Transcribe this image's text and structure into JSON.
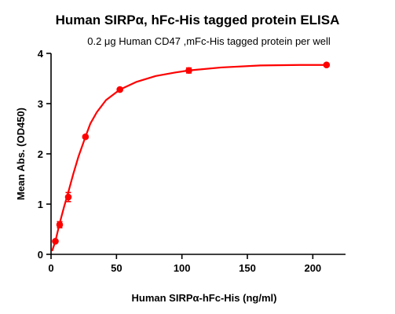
{
  "chart_data": {
    "type": "line",
    "title": "Human SIRPα, hFc-His tagged  protein ELISA",
    "subtitle": "0.2 μg Human CD47 ,mFc-His tagged protein per well",
    "xlabel": "Human SIRPα-hFc-His (ng/ml)",
    "ylabel": "Mean Abs. (OD450)",
    "xlim": [
      0,
      225
    ],
    "ylim": [
      0,
      4
    ],
    "xticks": [
      0,
      50,
      100,
      150,
      200
    ],
    "yticks": [
      0,
      1,
      2,
      3,
      4
    ],
    "grid": false,
    "legend": "none",
    "series": [
      {
        "color": "#ff0000",
        "points": [
          {
            "x": 3.3,
            "y": 0.26,
            "err": 0.02
          },
          {
            "x": 6.6,
            "y": 0.59,
            "err": 0.06
          },
          {
            "x": 13.2,
            "y": 1.14,
            "err": 0.09
          },
          {
            "x": 26.3,
            "y": 2.34,
            "err": 0.03
          },
          {
            "x": 52.6,
            "y": 3.28,
            "err": 0.02
          },
          {
            "x": 105.3,
            "y": 3.66,
            "err": 0.05
          },
          {
            "x": 210.5,
            "y": 3.77,
            "err": 0.01
          }
        ],
        "curve": [
          [
            1,
            0.08
          ],
          [
            3.3,
            0.26
          ],
          [
            6.6,
            0.62
          ],
          [
            10,
            0.95
          ],
          [
            13.2,
            1.24
          ],
          [
            17,
            1.6
          ],
          [
            21,
            1.95
          ],
          [
            26.3,
            2.34
          ],
          [
            30,
            2.6
          ],
          [
            35,
            2.83
          ],
          [
            42,
            3.07
          ],
          [
            52.6,
            3.28
          ],
          [
            65,
            3.43
          ],
          [
            80,
            3.55
          ],
          [
            95,
            3.62
          ],
          [
            105.3,
            3.66
          ],
          [
            130,
            3.72
          ],
          [
            160,
            3.76
          ],
          [
            190,
            3.77
          ],
          [
            210.5,
            3.77
          ]
        ]
      }
    ]
  }
}
